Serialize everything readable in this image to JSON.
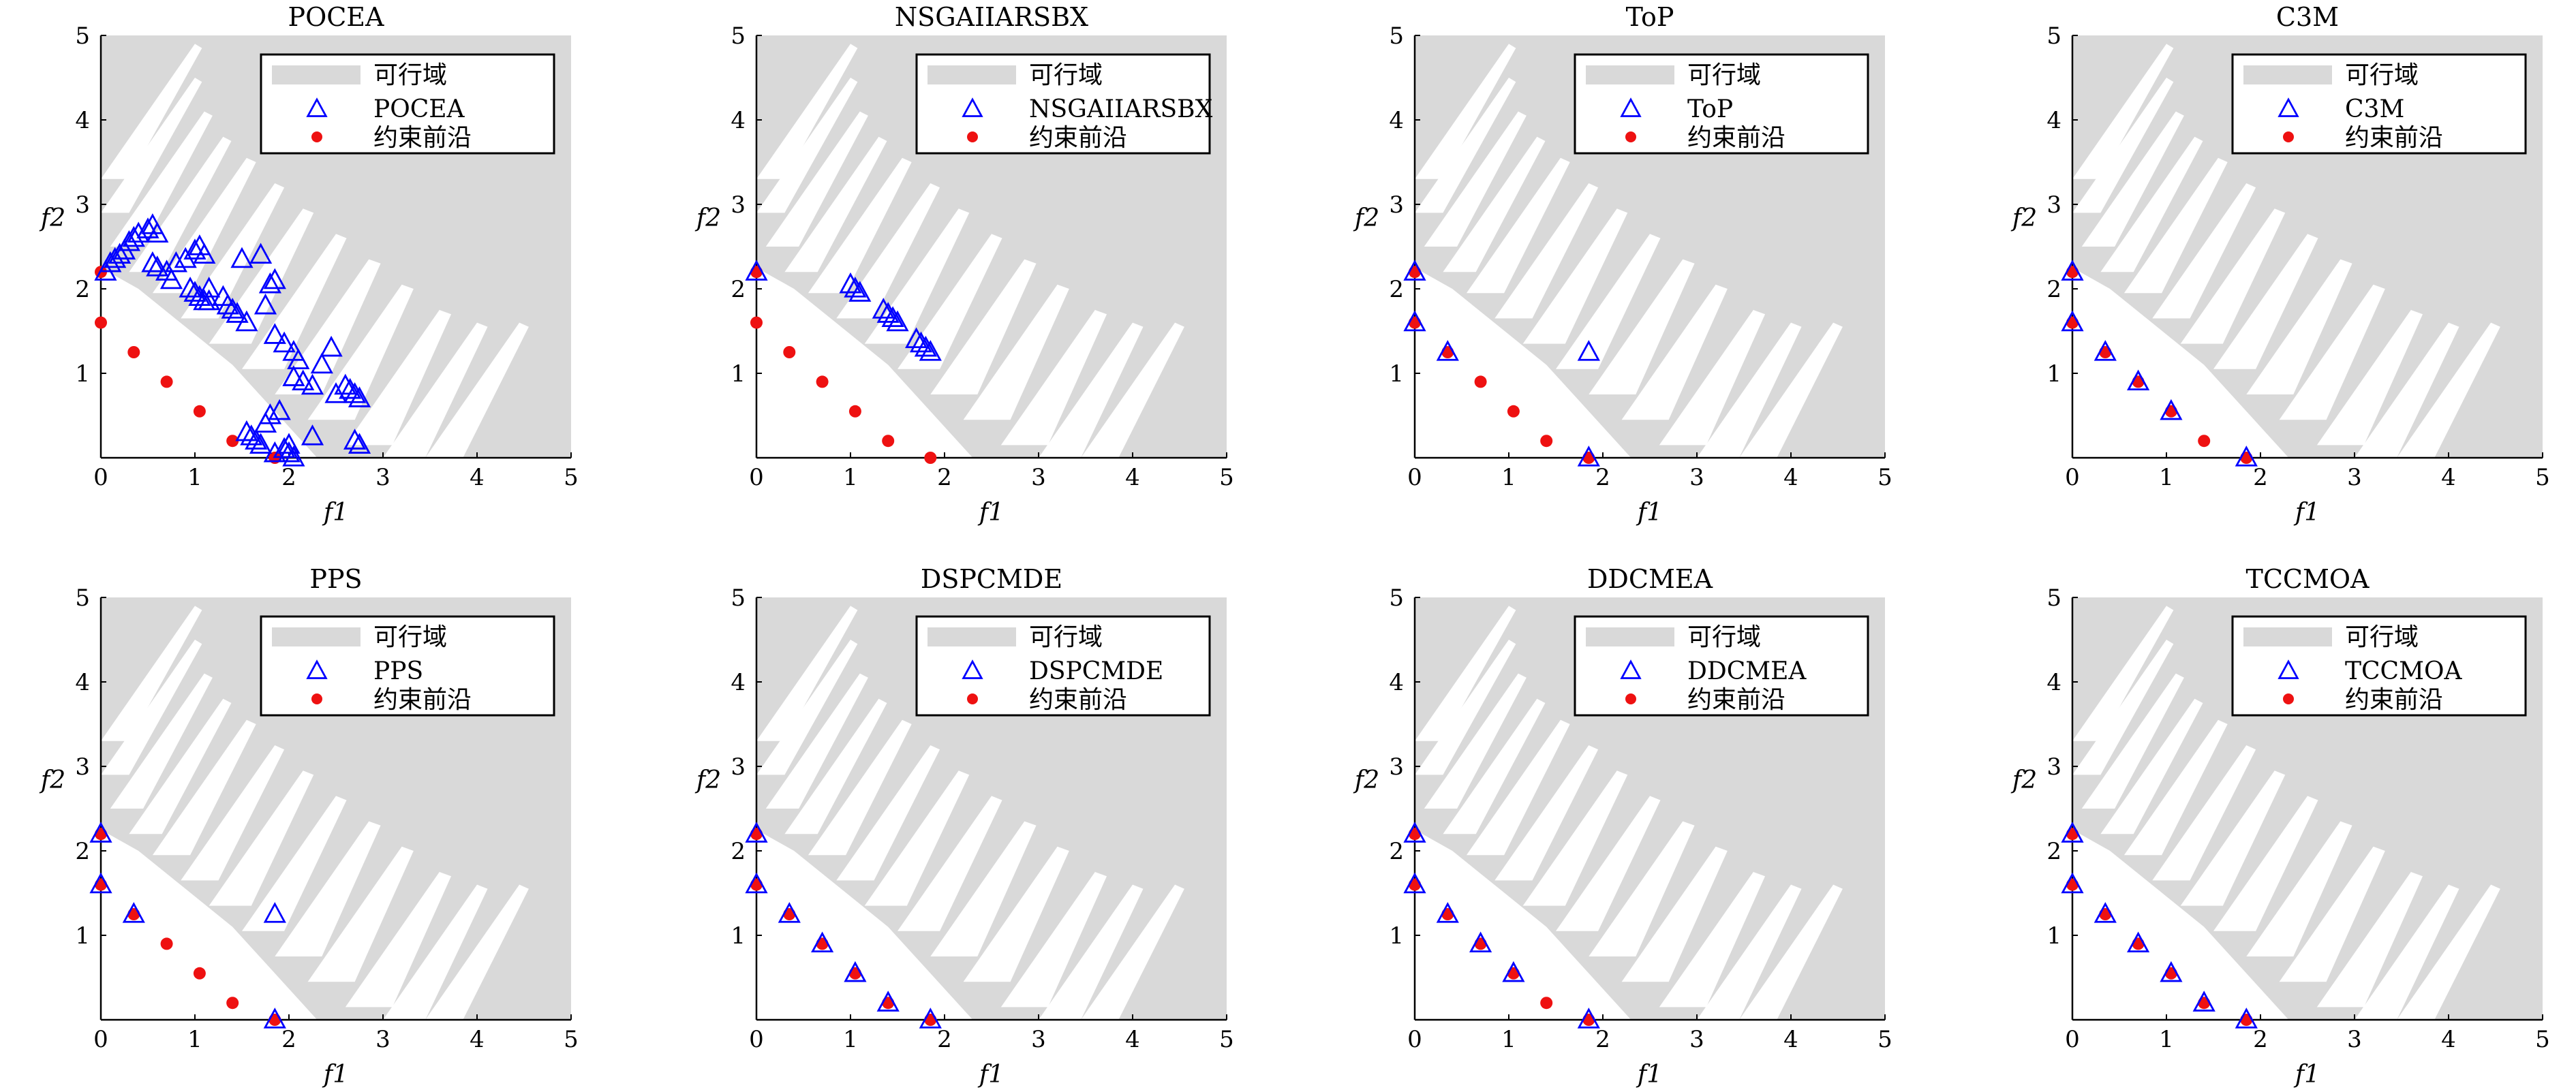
{
  "chart_data": [
    {
      "type": "scatter",
      "title": "POCEA",
      "xlabel": "f1",
      "ylabel": "f2",
      "xlim": [
        0,
        5
      ],
      "ylim": [
        0,
        5
      ],
      "xticks": [
        "0",
        "1",
        "2",
        "3",
        "4",
        "5"
      ],
      "yticks": [
        "1",
        "2",
        "3",
        "4",
        "5"
      ],
      "legend": [
        "可行域",
        "POCEA",
        "约束前沿"
      ],
      "series": [
        {
          "name": "POCEA",
          "marker": "triangle",
          "color": "#0000ff",
          "x": [
            0.05,
            0.1,
            0.15,
            0.2,
            0.25,
            0.3,
            0.35,
            0.4,
            0.5,
            0.55,
            0.6,
            0.55,
            0.6,
            0.7,
            0.75,
            0.8,
            0.9,
            1.0,
            1.05,
            1.1,
            1.15,
            0.95,
            1.0,
            1.05,
            1.1,
            1.15,
            1.3,
            1.35,
            1.4,
            1.45,
            1.55,
            1.5,
            1.7,
            1.85,
            1.8,
            1.75,
            1.85,
            1.95,
            2.05,
            2.1,
            2.05,
            2.15,
            2.25,
            2.35,
            2.45,
            2.5,
            2.6,
            2.65,
            2.7,
            2.75,
            2.25,
            2.0,
            1.95,
            2.0,
            2.05,
            1.55,
            1.6,
            1.65,
            1.7,
            1.75,
            1.8,
            1.9,
            2.7,
            2.75,
            1.85
          ],
          "y": [
            2.2,
            2.3,
            2.35,
            2.4,
            2.45,
            2.55,
            2.6,
            2.65,
            2.7,
            2.75,
            2.65,
            2.3,
            2.25,
            2.2,
            2.1,
            2.3,
            2.35,
            2.45,
            2.5,
            2.4,
            2.0,
            2.0,
            1.95,
            1.9,
            1.85,
            1.85,
            1.9,
            1.8,
            1.75,
            1.7,
            1.6,
            2.35,
            2.4,
            2.1,
            2.05,
            1.8,
            1.45,
            1.35,
            1.25,
            1.15,
            0.95,
            0.9,
            0.85,
            1.1,
            1.3,
            0.75,
            0.85,
            0.8,
            0.75,
            0.7,
            0.25,
            0.15,
            0.1,
            0.05,
            0.0,
            0.3,
            0.25,
            0.2,
            0.15,
            0.4,
            0.5,
            0.55,
            0.2,
            0.15,
            0.05
          ]
        },
        {
          "name": "约束前沿",
          "marker": "dot",
          "color": "#ee1111",
          "x": [
            0.0,
            0.0,
            0.35,
            0.7,
            1.05,
            1.4,
            1.85
          ],
          "y": [
            2.2,
            1.6,
            1.25,
            0.9,
            0.55,
            0.2,
            0.0
          ]
        }
      ]
    },
    {
      "type": "scatter",
      "title": "NSGAIIARSBX",
      "xlabel": "f1",
      "ylabel": "f2",
      "xlim": [
        0,
        5
      ],
      "ylim": [
        0,
        5
      ],
      "xticks": [
        "0",
        "1",
        "2",
        "3",
        "4",
        "5"
      ],
      "yticks": [
        "1",
        "2",
        "3",
        "4",
        "5"
      ],
      "legend": [
        "可行域",
        "NSGAIIARSBX",
        "约束前沿"
      ],
      "series": [
        {
          "name": "NSGAIIARSBX",
          "marker": "triangle",
          "color": "#0000ff",
          "x": [
            0.0,
            1.0,
            1.05,
            1.1,
            1.35,
            1.4,
            1.45,
            1.5,
            1.7,
            1.75,
            1.8,
            1.85
          ],
          "y": [
            2.2,
            2.05,
            2.0,
            1.95,
            1.75,
            1.7,
            1.65,
            1.6,
            1.4,
            1.35,
            1.3,
            1.25
          ]
        },
        {
          "name": "约束前沿",
          "marker": "dot",
          "color": "#ee1111",
          "x": [
            0.0,
            0.0,
            0.35,
            0.7,
            1.05,
            1.4,
            1.85
          ],
          "y": [
            2.2,
            1.6,
            1.25,
            0.9,
            0.55,
            0.2,
            0.0
          ]
        }
      ]
    },
    {
      "type": "scatter",
      "title": "ToP",
      "xlabel": "f1",
      "ylabel": "f2",
      "xlim": [
        0,
        5
      ],
      "ylim": [
        0,
        5
      ],
      "xticks": [
        "0",
        "1",
        "2",
        "3",
        "4",
        "5"
      ],
      "yticks": [
        "1",
        "2",
        "3",
        "4",
        "5"
      ],
      "legend": [
        "可行域",
        "ToP",
        "约束前沿"
      ],
      "series": [
        {
          "name": "ToP",
          "marker": "triangle",
          "color": "#0000ff",
          "x": [
            0.0,
            0.0,
            0.35,
            1.85,
            1.85
          ],
          "y": [
            2.2,
            1.6,
            1.25,
            1.25,
            0.0
          ]
        },
        {
          "name": "约束前沿",
          "marker": "dot",
          "color": "#ee1111",
          "x": [
            0.0,
            0.0,
            0.35,
            0.7,
            1.05,
            1.4,
            1.85
          ],
          "y": [
            2.2,
            1.6,
            1.25,
            0.9,
            0.55,
            0.2,
            0.0
          ]
        }
      ]
    },
    {
      "type": "scatter",
      "title": "C3M",
      "xlabel": "f1",
      "ylabel": "f2",
      "xlim": [
        0,
        5
      ],
      "ylim": [
        0,
        5
      ],
      "xticks": [
        "0",
        "1",
        "2",
        "3",
        "4",
        "5"
      ],
      "yticks": [
        "1",
        "2",
        "3",
        "4",
        "5"
      ],
      "legend": [
        "可行域",
        "C3M",
        "约束前沿"
      ],
      "series": [
        {
          "name": "C3M",
          "marker": "triangle",
          "color": "#0000ff",
          "x": [
            0.0,
            0.0,
            0.35,
            0.7,
            1.05,
            1.85
          ],
          "y": [
            2.2,
            1.6,
            1.25,
            0.9,
            0.55,
            0.0
          ]
        },
        {
          "name": "约束前沿",
          "marker": "dot",
          "color": "#ee1111",
          "x": [
            0.0,
            0.0,
            0.35,
            0.7,
            1.05,
            1.4,
            1.85
          ],
          "y": [
            2.2,
            1.6,
            1.25,
            0.9,
            0.55,
            0.2,
            0.0
          ]
        }
      ]
    },
    {
      "type": "scatter",
      "title": "PPS",
      "xlabel": "f1",
      "ylabel": "f2",
      "xlim": [
        0,
        5
      ],
      "ylim": [
        0,
        5
      ],
      "xticks": [
        "0",
        "1",
        "2",
        "3",
        "4",
        "5"
      ],
      "yticks": [
        "1",
        "2",
        "3",
        "4",
        "5"
      ],
      "legend": [
        "可行域",
        "PPS",
        "约束前沿"
      ],
      "series": [
        {
          "name": "PPS",
          "marker": "triangle",
          "color": "#0000ff",
          "x": [
            0.0,
            0.0,
            0.35,
            1.85,
            1.85
          ],
          "y": [
            2.2,
            1.6,
            1.25,
            1.25,
            0.0
          ]
        },
        {
          "name": "约束前沿",
          "marker": "dot",
          "color": "#ee1111",
          "x": [
            0.0,
            0.0,
            0.35,
            0.7,
            1.05,
            1.4,
            1.85
          ],
          "y": [
            2.2,
            1.6,
            1.25,
            0.9,
            0.55,
            0.2,
            0.0
          ]
        }
      ]
    },
    {
      "type": "scatter",
      "title": "DSPCMDE",
      "xlabel": "f1",
      "ylabel": "f2",
      "xlim": [
        0,
        5
      ],
      "ylim": [
        0,
        5
      ],
      "xticks": [
        "0",
        "1",
        "2",
        "3",
        "4",
        "5"
      ],
      "yticks": [
        "1",
        "2",
        "3",
        "4",
        "5"
      ],
      "legend": [
        "可行域",
        "DSPCMDE",
        "约束前沿"
      ],
      "series": [
        {
          "name": "DSPCMDE",
          "marker": "triangle",
          "color": "#0000ff",
          "x": [
            0.0,
            0.0,
            0.35,
            0.7,
            1.05,
            1.4,
            1.85
          ],
          "y": [
            2.2,
            1.6,
            1.25,
            0.9,
            0.55,
            0.2,
            0.0
          ]
        },
        {
          "name": "约束前沿",
          "marker": "dot",
          "color": "#ee1111",
          "x": [
            0.0,
            0.0,
            0.35,
            0.7,
            1.05,
            1.4,
            1.85
          ],
          "y": [
            2.2,
            1.6,
            1.25,
            0.9,
            0.55,
            0.2,
            0.0
          ]
        }
      ]
    },
    {
      "type": "scatter",
      "title": "DDCMEA",
      "xlabel": "f1",
      "ylabel": "f2",
      "xlim": [
        0,
        5
      ],
      "ylim": [
        0,
        5
      ],
      "xticks": [
        "0",
        "1",
        "2",
        "3",
        "4",
        "5"
      ],
      "yticks": [
        "1",
        "2",
        "3",
        "4",
        "5"
      ],
      "legend": [
        "可行域",
        "DDCMEA",
        "约束前沿"
      ],
      "series": [
        {
          "name": "DDCMEA",
          "marker": "triangle",
          "color": "#0000ff",
          "x": [
            0.0,
            0.0,
            0.35,
            0.7,
            1.05,
            1.85
          ],
          "y": [
            2.2,
            1.6,
            1.25,
            0.9,
            0.55,
            0.0
          ]
        },
        {
          "name": "约束前沿",
          "marker": "dot",
          "color": "#ee1111",
          "x": [
            0.0,
            0.0,
            0.35,
            0.7,
            1.05,
            1.4,
            1.85
          ],
          "y": [
            2.2,
            1.6,
            1.25,
            0.9,
            0.55,
            0.2,
            0.0
          ]
        }
      ]
    },
    {
      "type": "scatter",
      "title": "TCCMOA",
      "xlabel": "f1",
      "ylabel": "f2",
      "xlim": [
        0,
        5
      ],
      "ylim": [
        0,
        5
      ],
      "xticks": [
        "0",
        "1",
        "2",
        "3",
        "4",
        "5"
      ],
      "yticks": [
        "1",
        "2",
        "3",
        "4",
        "5"
      ],
      "legend": [
        "可行域",
        "TCCMOA",
        "约束前沿"
      ],
      "series": [
        {
          "name": "TCCMOA",
          "marker": "triangle",
          "color": "#0000ff",
          "x": [
            0.0,
            0.0,
            0.35,
            0.7,
            1.05,
            1.4,
            1.85
          ],
          "y": [
            2.2,
            1.6,
            1.25,
            0.9,
            0.55,
            0.2,
            0.0
          ]
        },
        {
          "name": "约束前沿",
          "marker": "dot",
          "color": "#ee1111",
          "x": [
            0.0,
            0.0,
            0.35,
            0.7,
            1.05,
            1.4,
            1.85
          ],
          "y": [
            2.2,
            1.6,
            1.25,
            0.9,
            0.55,
            0.2,
            0.0
          ]
        }
      ]
    }
  ],
  "colors": {
    "feasible_region": "#d9d9d9",
    "infeasible_stripe": "#ffffff",
    "algorithm_marker": "#0000ff",
    "front_marker": "#ee1111"
  }
}
